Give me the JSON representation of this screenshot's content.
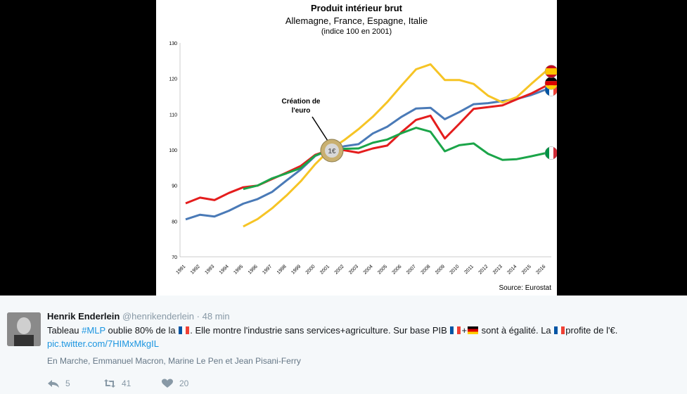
{
  "chart": {
    "title": "Produit intérieur brut",
    "subtitle": "Allemagne, France, Espagne, Italie",
    "note": "(indice 100 en 2001)",
    "annotation_line1": "Création de",
    "annotation_line2": "l'euro",
    "source": "Source: Eurostat"
  },
  "chart_data": {
    "type": "line",
    "x": [
      1991,
      1992,
      1993,
      1994,
      1995,
      1996,
      1997,
      1998,
      1999,
      2000,
      2001,
      2002,
      2003,
      2004,
      2005,
      2006,
      2007,
      2008,
      2009,
      2010,
      2011,
      2012,
      2013,
      2014,
      2015,
      2016
    ],
    "ylim": [
      70,
      130
    ],
    "yticks": [
      70,
      80,
      90,
      100,
      110,
      120,
      130
    ],
    "series": [
      {
        "id": "france",
        "color": "#4a7ab7",
        "flag": "fr",
        "values": [
          80.5,
          81.8,
          81.3,
          82.9,
          84.9,
          86.2,
          88.2,
          91.4,
          94.5,
          98.3,
          100,
          101,
          101.6,
          104.6,
          106.5,
          109.3,
          111.6,
          111.8,
          108.6,
          110.6,
          112.8,
          113.1,
          113.7,
          114.3,
          115.4,
          116.9
        ]
      },
      {
        "id": "germany",
        "color": "#e41d1d",
        "flag": "de",
        "values": [
          85,
          86.6,
          85.9,
          87.9,
          89.5,
          90,
          91.8,
          93.6,
          95.5,
          98.6,
          100,
          99.9,
          99.2,
          100.4,
          101.2,
          105,
          108.4,
          109.6,
          103.2,
          107.3,
          111.5,
          112,
          112.5,
          114.2,
          115.8,
          117.9
        ]
      },
      {
        "id": "spain",
        "color": "#f6c425",
        "flag": "es",
        "values": [
          null,
          null,
          null,
          null,
          78.5,
          80.6,
          83.6,
          87.2,
          91.2,
          96,
          100,
          102.7,
          105.8,
          109.3,
          113.4,
          118.1,
          122.6,
          124,
          119.6,
          119.6,
          118.5,
          115.2,
          113.3,
          114.8,
          118.5,
          122
        ]
      },
      {
        "id": "italy",
        "color": "#1ba549",
        "flag": "it",
        "values": [
          null,
          null,
          null,
          null,
          89,
          90,
          92,
          93.4,
          94.9,
          98.4,
          100,
          100.3,
          100.4,
          102,
          102.9,
          104.7,
          106.2,
          105.1,
          99.6,
          101.3,
          101.8,
          98.9,
          97.2,
          97.4,
          98.2,
          99.1
        ]
      }
    ]
  },
  "tweet": {
    "name": "Henrik Enderlein",
    "handle": "@henrikenderlein",
    "separator": "·",
    "time": "48 min",
    "text_pre": "Tableau ",
    "hashtag": "#MLP",
    "text_1": " oublie 80% de la ",
    "text_2": ". Elle montre l'industrie sans services+agriculture. Sur base PIB ",
    "text_3": "+",
    "text_4": " sont à égalité. La ",
    "text_5": "profite de l'€.",
    "link": "pic.twitter.com/7HIMxMkgIL",
    "people": "En Marche, Emmanuel Macron, Marine Le Pen et Jean Pisani-Ferry",
    "reply_count": "5",
    "retweet_count": "41",
    "like_count": "20"
  }
}
